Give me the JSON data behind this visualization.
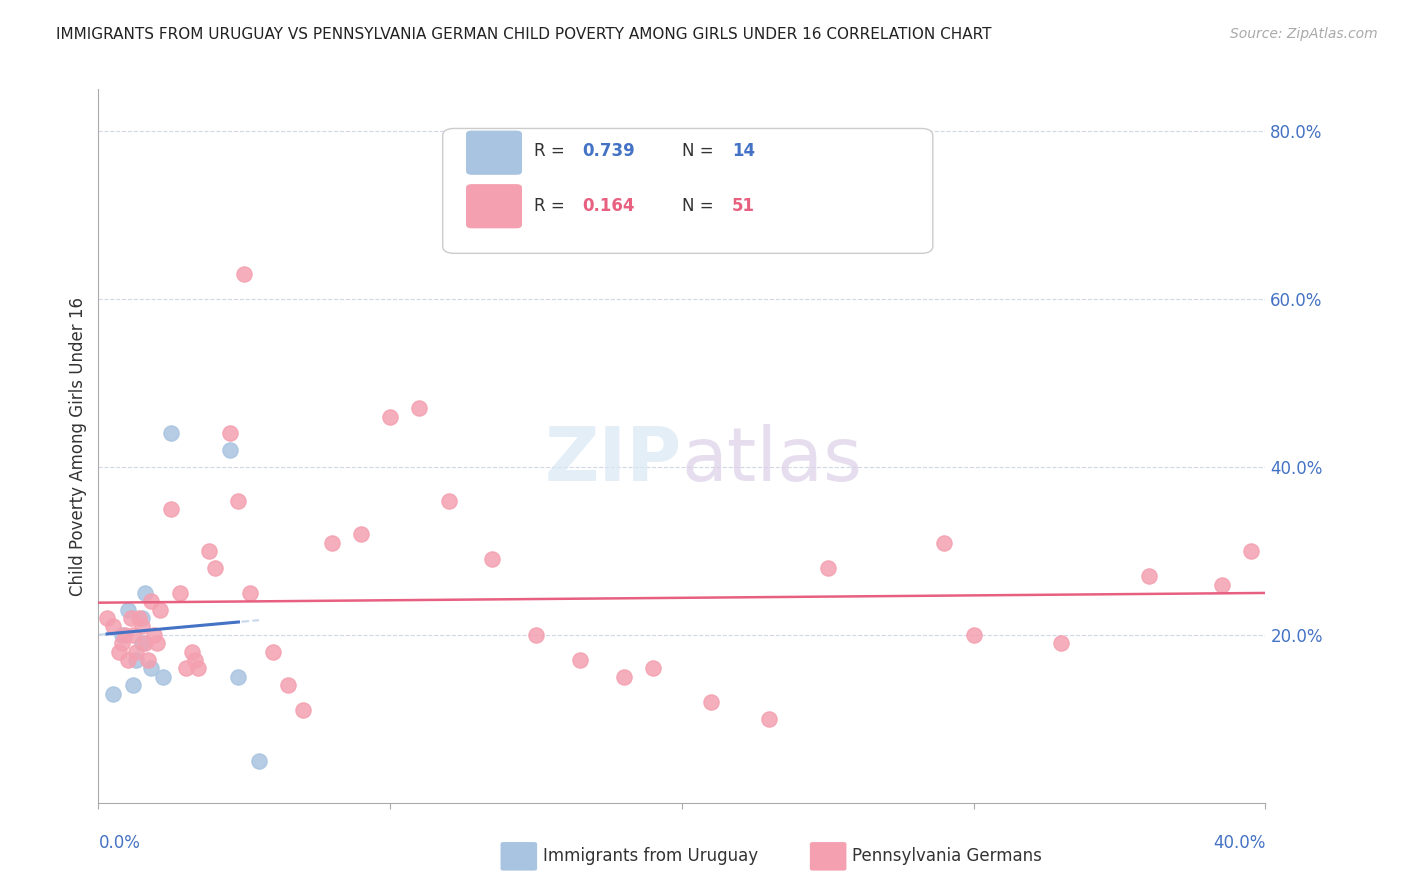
{
  "title": "IMMIGRANTS FROM URUGUAY VS PENNSYLVANIA GERMAN CHILD POVERTY AMONG GIRLS UNDER 16 CORRELATION CHART",
  "source": "Source: ZipAtlas.com",
  "ylabel": "Child Poverty Among Girls Under 16",
  "legend_blue_r": "0.739",
  "legend_blue_n": "14",
  "legend_pink_r": "0.164",
  "legend_pink_n": "51",
  "blue_color": "#a8c4e0",
  "blue_line_color": "#4472c4",
  "blue_trendline_color": "#c8d8ec",
  "pink_color": "#f4a0b0",
  "pink_line_color": "#e86080",
  "background_color": "#ffffff",
  "grid_color": "#d0d8e8",
  "right_axis_color": "#4472c4",
  "xlim": [
    0.0,
    0.4
  ],
  "ylim": [
    0.0,
    0.85
  ],
  "blue_scatter_x": [
    0.005,
    0.008,
    0.01,
    0.012,
    0.013,
    0.015,
    0.015,
    0.016,
    0.018,
    0.022,
    0.025,
    0.045,
    0.048,
    0.055
  ],
  "blue_scatter_y": [
    0.13,
    0.2,
    0.23,
    0.14,
    0.17,
    0.22,
    0.19,
    0.25,
    0.16,
    0.15,
    0.44,
    0.42,
    0.15,
    0.05
  ],
  "pink_scatter_x": [
    0.003,
    0.005,
    0.007,
    0.008,
    0.009,
    0.01,
    0.011,
    0.012,
    0.013,
    0.014,
    0.015,
    0.016,
    0.017,
    0.018,
    0.019,
    0.02,
    0.021,
    0.025,
    0.028,
    0.03,
    0.032,
    0.033,
    0.034,
    0.038,
    0.04,
    0.045,
    0.048,
    0.05,
    0.052,
    0.06,
    0.065,
    0.07,
    0.08,
    0.09,
    0.1,
    0.11,
    0.12,
    0.135,
    0.15,
    0.165,
    0.18,
    0.19,
    0.21,
    0.23,
    0.25,
    0.29,
    0.3,
    0.33,
    0.36,
    0.385,
    0.395
  ],
  "pink_scatter_y": [
    0.22,
    0.21,
    0.18,
    0.19,
    0.2,
    0.17,
    0.22,
    0.2,
    0.18,
    0.22,
    0.21,
    0.19,
    0.17,
    0.24,
    0.2,
    0.19,
    0.23,
    0.35,
    0.25,
    0.16,
    0.18,
    0.17,
    0.16,
    0.3,
    0.28,
    0.44,
    0.36,
    0.63,
    0.25,
    0.18,
    0.14,
    0.11,
    0.31,
    0.32,
    0.46,
    0.47,
    0.36,
    0.29,
    0.2,
    0.17,
    0.15,
    0.16,
    0.12,
    0.1,
    0.28,
    0.31,
    0.2,
    0.19,
    0.27,
    0.26,
    0.3
  ]
}
